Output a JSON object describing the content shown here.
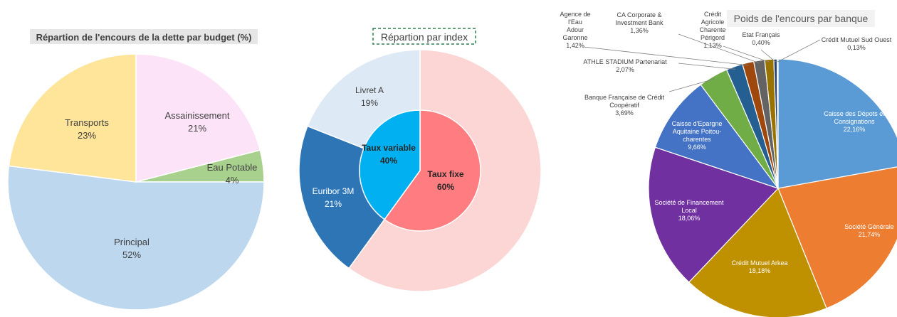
{
  "chart_data": [
    {
      "type": "pie",
      "title": "Répartion de l'encours de la dette par budget (%)",
      "categories": [
        "Assainissement",
        "Eau Potable",
        "Principal",
        "Transports"
      ],
      "values": [
        21,
        4,
        52,
        23
      ],
      "value_labels": [
        "21%",
        "4%",
        "52%",
        "23%"
      ],
      "colors": [
        "#fce3f7",
        "#a9d18e",
        "#bdd7ee",
        "#fee599"
      ]
    },
    {
      "type": "pie",
      "subtype": "nested-donut",
      "title": "Répartion par index",
      "outer": {
        "categories": [
          "Livret A",
          "Euribor 3M",
          "Taux fixe (part)"
        ],
        "values": [
          19,
          21,
          60
        ],
        "value_labels": [
          "19%",
          "21%",
          ""
        ],
        "colors": [
          "#dde9f5",
          "#2e75b6",
          "#fcd5d5"
        ]
      },
      "inner": {
        "categories": [
          "Taux variable",
          "Taux fixe"
        ],
        "values": [
          40,
          60
        ],
        "value_labels": [
          "40%",
          "60%"
        ],
        "colors": [
          "#00b0f0",
          "#ff7c80"
        ]
      }
    },
    {
      "type": "pie",
      "title": "Poids de l'encours par banque",
      "categories": [
        "Caisse des Dépots et Consignations",
        "Société Générale",
        "Crédit Mutuel Arkea",
        "Société de Financement Local",
        "Caisse d'Epargne Aquitaine Poitou-charentes",
        "Banque Française de Crédit Coopératif",
        "ATHLE STADIUM Partenariat",
        "Agence de l'Eau Adour Garonne",
        "CA Corporate & Investment Bank",
        "Crédit Agricole Charente Périgord",
        "Etat Français",
        "Crédit Mutuel Sud Ouest"
      ],
      "values": [
        22.16,
        21.74,
        18.18,
        18.06,
        9.66,
        3.69,
        2.07,
        1.42,
        1.36,
        1.13,
        0.4,
        0.13
      ],
      "value_labels": [
        "22,16%",
        "21,74%",
        "18,18%",
        "18,06%",
        "9,66%",
        "3,69%",
        "2,07%",
        "1,42%",
        "1,36%",
        "1,13%",
        "0,40%",
        "0,13%"
      ],
      "colors": [
        "#5b9bd5",
        "#ed7d31",
        "#bf9000",
        "#7030a0",
        "#4472c4",
        "#70ad47",
        "#255e91",
        "#9e480e",
        "#636363",
        "#997300",
        "#264478",
        "#a5a5a5"
      ]
    }
  ]
}
